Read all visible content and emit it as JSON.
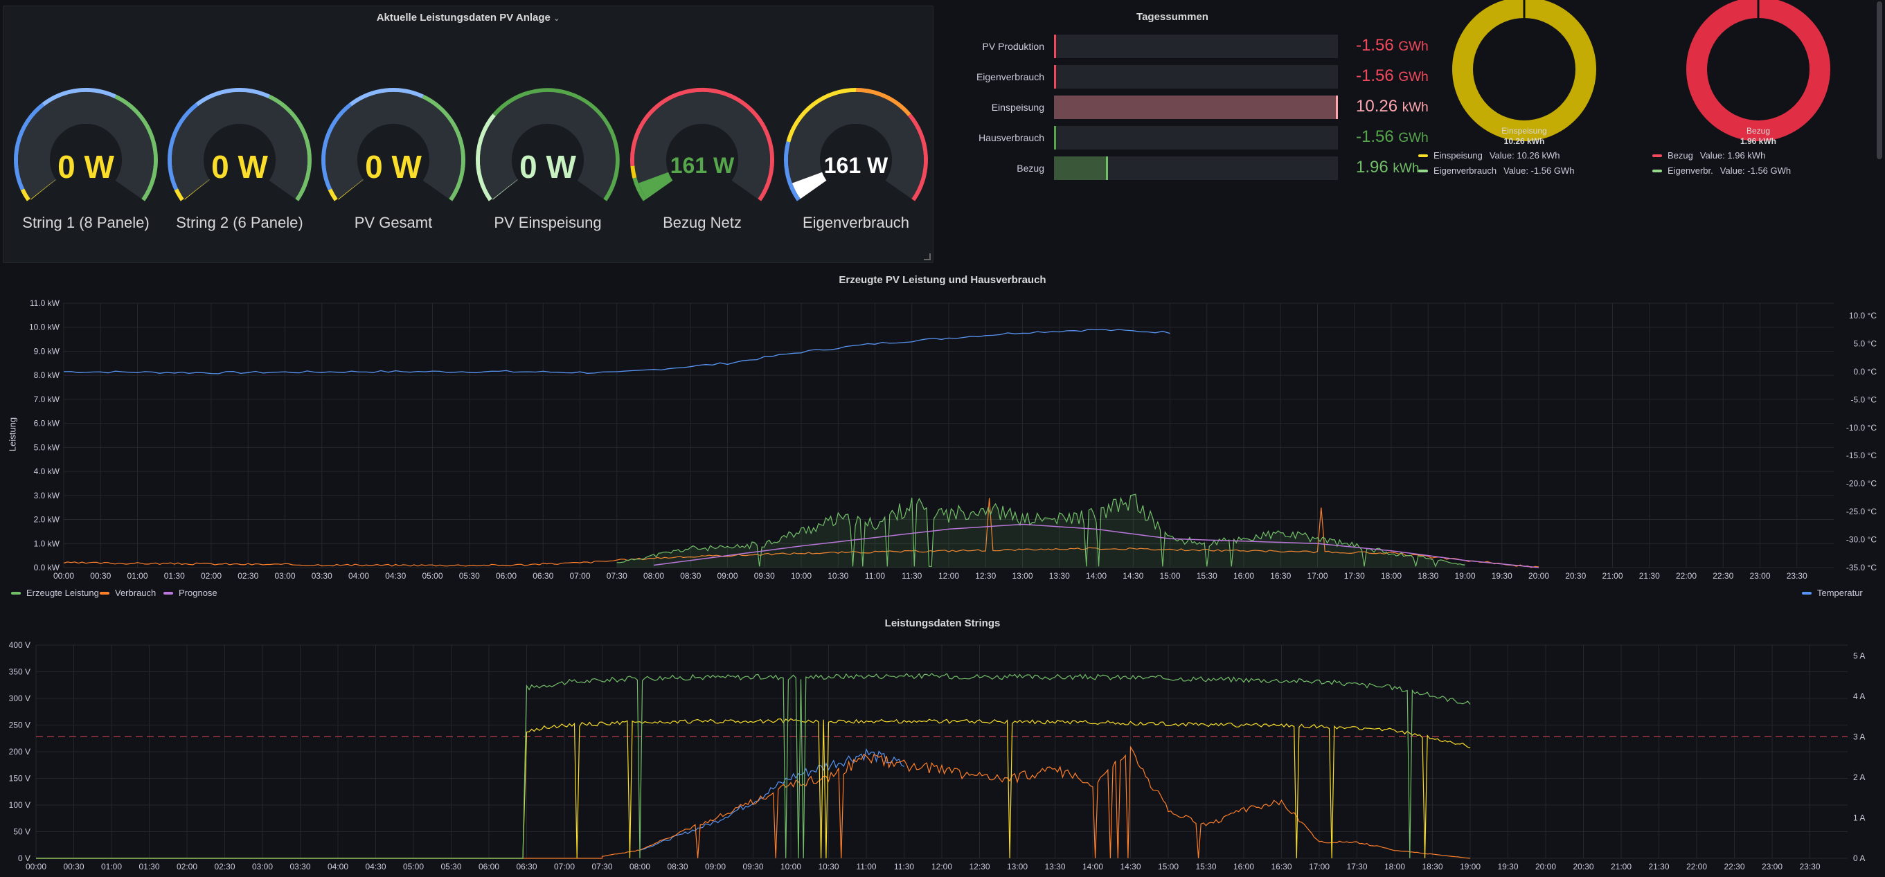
{
  "panels": {
    "current": {
      "title": "Aktuelle Leistungsdaten PV Anlage",
      "gauges": [
        {
          "label": "String 1 (8 Panele)",
          "value": "0 W",
          "color": "#fade2a",
          "level": 0
        },
        {
          "label": "String 2 (6 Panele)",
          "value": "0 W",
          "color": "#fade2a",
          "level": 0
        },
        {
          "label": "PV Gesamt",
          "value": "0 W",
          "color": "#fade2a",
          "level": 0
        },
        {
          "label": "PV Einspeisung",
          "value": "0 W",
          "color": "#c8f2c2",
          "level": 0
        },
        {
          "label": "Bezug Netz",
          "value": "161 W",
          "color": "#56a64b",
          "level": 0.06
        },
        {
          "label": "Eigenverbrauch",
          "value": "161 W",
          "color": "#ffffff",
          "level": 0.06
        }
      ]
    },
    "daily": {
      "title": "Tagessummen",
      "bars": [
        {
          "label": "PV Produktion",
          "value": "-1.56",
          "unit": "GWh",
          "color": "#f2495c",
          "fill_color": "#f2495c",
          "level": 0
        },
        {
          "label": "Eigenverbrauch",
          "value": "-1.56",
          "unit": "GWh",
          "color": "#f2495c",
          "fill_color": "#f2495c",
          "level": 0
        },
        {
          "label": "Einspeisung",
          "value": "10.26",
          "unit": "kWh",
          "color": "#ffa6b0",
          "fill_color": "#70484f",
          "level": 1.0
        },
        {
          "label": "Hausverbrauch",
          "value": "-1.56",
          "unit": "GWh",
          "color": "#56a64b",
          "fill_color": "#56a64b",
          "level": 0
        },
        {
          "label": "Bezug",
          "value": "1.96",
          "unit": "kWh",
          "color": "#73bf69",
          "fill_color": "#3b5739",
          "level": 0.19
        }
      ]
    },
    "pie1": {
      "name": "Einspeisung",
      "value": "10.26 kWh",
      "legend": [
        {
          "label": "Einspeisung",
          "value_text": "Value: 10.26 kWh",
          "color": "#fade2a"
        },
        {
          "label": "Eigenverbrauch",
          "value_text": "Value: -1.56 GWh",
          "color": "#96d98d"
        }
      ]
    },
    "pie2": {
      "name": "Bezug",
      "value": "1.96 kWh",
      "legend": [
        {
          "label": "Bezug",
          "value_text": "Value: 1.96 kWh",
          "color": "#f2495c"
        },
        {
          "label": "Eigenverbr.",
          "value_text": "Value: -1.56 GWh",
          "color": "#96d98d"
        }
      ]
    },
    "chart1": {
      "title": "Erzeugte PV Leistung und Hausverbrauch",
      "ylabel": "Leistung",
      "yticks": [
        "0.0 kW",
        "1.0 kW",
        "2.0 kW",
        "3.0 kW",
        "4.0 kW",
        "5.0 kW",
        "6.0 kW",
        "7.0 kW",
        "8.0 kW",
        "9.0 kW",
        "10.0 kW",
        "11.0 kW"
      ],
      "y2ticks": [
        "-35.0 °C",
        "-30.0 °C",
        "-25.0 °C",
        "-20.0 °C",
        "-15.0 °C",
        "-10.0 °C",
        "-5.0 °C",
        "0.0 °C",
        "5.0 °C",
        "10.0 °C"
      ],
      "legend": [
        {
          "label": "Erzeugte Leistung",
          "color": "#73bf69"
        },
        {
          "label": "Verbrauch",
          "color": "#ff7f2a"
        },
        {
          "label": "Prognose",
          "color": "#b877d9"
        }
      ],
      "legend_right": {
        "label": "Temperatur",
        "color": "#5794f2"
      }
    },
    "chart2": {
      "title": "Leistungsdaten Strings",
      "yticks": [
        "0 V",
        "50 V",
        "100 V",
        "150 V",
        "200 V",
        "250 V",
        "300 V",
        "350 V",
        "400 V"
      ],
      "y2ticks": [
        "0 A",
        "1 A",
        "2 A",
        "3 A",
        "4 A",
        "5 A"
      ]
    },
    "xticks": [
      "00:00",
      "00:30",
      "01:00",
      "01:30",
      "02:00",
      "02:30",
      "03:00",
      "03:30",
      "04:00",
      "04:30",
      "05:00",
      "05:30",
      "06:00",
      "06:30",
      "07:00",
      "07:30",
      "08:00",
      "08:30",
      "09:00",
      "09:30",
      "10:00",
      "10:30",
      "11:00",
      "11:30",
      "12:00",
      "12:30",
      "13:00",
      "13:30",
      "14:00",
      "14:30",
      "15:00",
      "15:30",
      "16:00",
      "16:30",
      "17:00",
      "17:30",
      "18:00",
      "18:30",
      "19:00",
      "19:30",
      "20:00",
      "20:30",
      "21:00",
      "21:30",
      "22:00",
      "22:30",
      "23:00",
      "23:30"
    ]
  },
  "chart_data": [
    {
      "type": "line",
      "title": "Erzeugte PV Leistung und Hausverbrauch",
      "ylabel": "Leistung",
      "ylim": [
        0,
        11
      ],
      "y2lim": [
        -35,
        10
      ],
      "series": [
        {
          "name": "Erzeugte Leistung",
          "x": [
            "07:30",
            "08:00",
            "08:30",
            "09:00",
            "09:30",
            "10:00",
            "10:30",
            "11:00",
            "11:30",
            "12:00",
            "12:30",
            "13:00",
            "13:30",
            "14:00",
            "14:30",
            "15:00",
            "15:30",
            "16:00",
            "16:30",
            "17:00",
            "17:30",
            "18:00",
            "18:30",
            "19:00"
          ],
          "values": [
            0.2,
            0.5,
            0.8,
            0.8,
            1.0,
            1.5,
            2.0,
            1.8,
            2.6,
            2.2,
            2.5,
            2.0,
            2.0,
            2.2,
            2.8,
            1.2,
            1.0,
            1.2,
            1.4,
            1.2,
            0.9,
            0.6,
            0.4,
            0.1
          ]
        },
        {
          "name": "Verbrauch",
          "x": [
            "00:00",
            "04:00",
            "06:00",
            "07:00",
            "08:00",
            "10:00",
            "12:00",
            "14:00",
            "16:00",
            "18:00",
            "19:00",
            "20:00"
          ],
          "values": [
            0.2,
            0.1,
            0.1,
            0.2,
            0.4,
            0.6,
            0.7,
            0.8,
            0.7,
            0.6,
            0.3,
            0.0
          ]
        },
        {
          "name": "Prognose",
          "x": [
            "08:00",
            "10:00",
            "12:00",
            "13:00",
            "14:00",
            "15:00",
            "16:00",
            "17:00",
            "18:00",
            "19:00",
            "20:00"
          ],
          "values": [
            0.1,
            0.9,
            1.6,
            1.8,
            1.6,
            1.2,
            1.1,
            1.0,
            0.7,
            0.3,
            0.0
          ]
        },
        {
          "name": "Temperatur",
          "axis": "right",
          "x": [
            "00:00",
            "02:00",
            "04:00",
            "06:00",
            "07:30",
            "09:00",
            "10:00",
            "11:00",
            "12:00",
            "13:00",
            "14:00",
            "15:00"
          ],
          "values": [
            0.0,
            -0.2,
            0.0,
            0.0,
            -0.2,
            1.5,
            3.5,
            5.0,
            6.0,
            7.0,
            7.5,
            7.0
          ]
        }
      ]
    },
    {
      "type": "line",
      "title": "Leistungsdaten Strings",
      "ylim": [
        0,
        400
      ],
      "y2lim": [
        0,
        5.4
      ],
      "series": [
        {
          "axis": "left",
          "x": [
            "06:30",
            "07:00",
            "08:00",
            "09:00",
            "10:00",
            "11:00",
            "12:00",
            "13:00",
            "14:00",
            "15:00",
            "16:00",
            "17:00",
            "18:00",
            "19:00"
          ],
          "values": [
            320,
            330,
            338,
            340,
            340,
            342,
            342,
            340,
            340,
            338,
            335,
            332,
            320,
            290
          ]
        },
        {
          "axis": "left",
          "x": [
            "06:30",
            "07:00",
            "08:00",
            "09:00",
            "10:00",
            "11:00",
            "12:00",
            "13:00",
            "14:00",
            "15:00",
            "16:00",
            "17:00",
            "18:00",
            "19:00"
          ],
          "values": [
            240,
            250,
            255,
            257,
            258,
            257,
            257,
            256,
            255,
            252,
            250,
            248,
            240,
            210
          ]
        },
        {
          "axis": "right",
          "x": [
            "07:30",
            "08:00",
            "08:30",
            "09:00",
            "09:30",
            "10:00",
            "10:30",
            "11:00",
            "11:30",
            "12:00",
            "12:30",
            "13:00",
            "13:30",
            "14:00",
            "14:30",
            "15:00",
            "15:30",
            "16:00",
            "16:30",
            "17:00",
            "17:30",
            "18:00",
            "18:30",
            "19:00"
          ],
          "values": [
            0.05,
            0.2,
            0.6,
            1.0,
            1.4,
            1.8,
            2.0,
            2.5,
            2.3,
            2.2,
            2.0,
            2.0,
            2.2,
            1.8,
            2.6,
            1.2,
            0.8,
            1.2,
            1.4,
            0.4,
            0.4,
            0.2,
            0.1,
            0.0
          ]
        },
        {
          "axis": "right",
          "x": [
            "08:00",
            "09:00",
            "09:30",
            "10:00",
            "10:30",
            "11:00",
            "11:30"
          ],
          "values": [
            0.2,
            0.9,
            1.4,
            2.0,
            2.3,
            2.6,
            2.3
          ]
        }
      ],
      "threshold": {
        "axis": "right",
        "value": 3
      }
    }
  ]
}
